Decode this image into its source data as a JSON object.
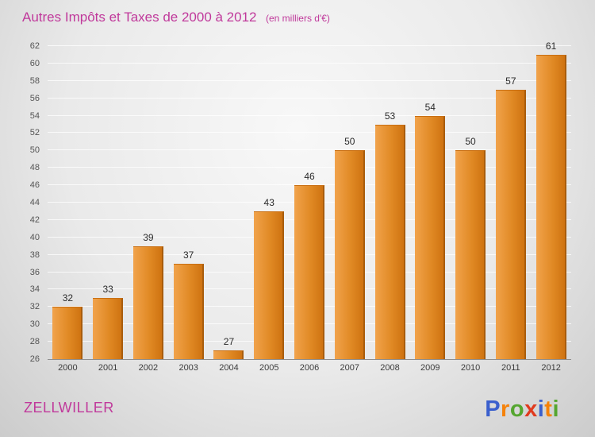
{
  "header": {
    "title": "Autres Impôts et Taxes de 2000 à 2012",
    "subtitle": "(en milliers d'€)"
  },
  "footer": {
    "location": "ZELLWILLER",
    "logo": [
      {
        "ch": "P",
        "color": "#3a5fcd"
      },
      {
        "ch": "r",
        "color": "#f5820a"
      },
      {
        "ch": "o",
        "color": "#55a630"
      },
      {
        "ch": "x",
        "color": "#e03a1e"
      },
      {
        "ch": "i",
        "color": "#3a5fcd"
      },
      {
        "ch": "t",
        "color": "#f5820a"
      },
      {
        "ch": "i",
        "color": "#55a630"
      }
    ]
  },
  "colors": {
    "accent": "#c0399b",
    "bar_light": "#f1a34c",
    "bar_mid": "#e18a25",
    "bar_dark": "#cf7311",
    "bar_edge": "#a95d0d"
  },
  "chart_data": {
    "type": "bar",
    "title": "Autres Impôts et Taxes de 2000 à 2012",
    "subtitle": "(en milliers d'€)",
    "categories": [
      "2000",
      "2001",
      "2002",
      "2003",
      "2004",
      "2005",
      "2006",
      "2007",
      "2008",
      "2009",
      "2010",
      "2011",
      "2012"
    ],
    "values": [
      32,
      33,
      39,
      37,
      27,
      43,
      46,
      50,
      53,
      54,
      50,
      57,
      61
    ],
    "xlabel": "",
    "ylabel": "",
    "ylim": [
      26,
      62
    ],
    "ytick_step": 2,
    "grid": true,
    "legend": false
  }
}
